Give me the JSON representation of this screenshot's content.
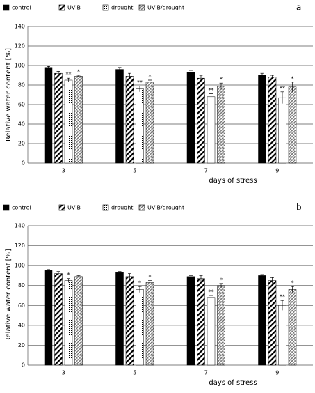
{
  "chart_data": [
    {
      "type": "bar",
      "panel_label": "a",
      "y_label": "Relative water content [%]",
      "x_label": "days of stress",
      "categories": [
        "3",
        "5",
        "7",
        "9"
      ],
      "ylim": [
        0,
        140
      ],
      "yticks": [
        0,
        20,
        40,
        60,
        80,
        100,
        120,
        140
      ],
      "grid": true,
      "series": [
        {
          "name": "control",
          "color": "#000000",
          "pattern": "solid",
          "values": [
            98,
            96,
            93,
            90
          ],
          "errors": [
            1,
            2,
            2,
            2
          ]
        },
        {
          "name": "UV-B",
          "color": "#000000",
          "pattern": "diagonal",
          "values": [
            92,
            89,
            87,
            88
          ],
          "errors": [
            2,
            3,
            3,
            2
          ]
        },
        {
          "name": "drought",
          "color": "#000000",
          "pattern": "dots",
          "values": [
            85,
            76,
            68,
            67
          ],
          "errors": [
            2,
            3,
            3,
            6
          ],
          "markers": [
            "**",
            "**",
            "**",
            "**"
          ]
        },
        {
          "name": "UV-B/drought",
          "color": "#000000",
          "pattern": "crosshatch",
          "values": [
            89,
            83,
            79,
            78
          ],
          "errors": [
            1,
            2,
            3,
            5
          ],
          "markers": [
            "*",
            "*",
            "*",
            "*"
          ]
        }
      ]
    },
    {
      "type": "bar",
      "panel_label": "b",
      "y_label": "Relative water content [%]",
      "x_label": "days of stress",
      "categories": [
        "3",
        "5",
        "7",
        "9"
      ],
      "ylim": [
        0,
        140
      ],
      "yticks": [
        0,
        20,
        40,
        60,
        80,
        100,
        120,
        140
      ],
      "grid": true,
      "series": [
        {
          "name": "control",
          "color": "#000000",
          "pattern": "solid",
          "values": [
            95,
            93,
            89,
            90
          ],
          "errors": [
            1,
            1,
            1,
            1
          ]
        },
        {
          "name": "UV-B",
          "color": "#000000",
          "pattern": "diagonal",
          "values": [
            92,
            89,
            87,
            85
          ],
          "errors": [
            2,
            3,
            3,
            3
          ]
        },
        {
          "name": "drought",
          "color": "#000000",
          "pattern": "dots",
          "values": [
            85,
            76,
            68,
            60
          ],
          "errors": [
            2,
            3,
            2,
            5
          ],
          "markers": [
            "*",
            "*",
            "**",
            "**"
          ]
        },
        {
          "name": "UV-B/drought",
          "color": "#000000",
          "pattern": "crosshatch",
          "values": [
            89,
            83,
            80,
            76
          ],
          "errors": [
            1,
            2,
            2,
            3
          ],
          "markers": [
            null,
            "*",
            "*",
            "*"
          ]
        }
      ]
    }
  ]
}
